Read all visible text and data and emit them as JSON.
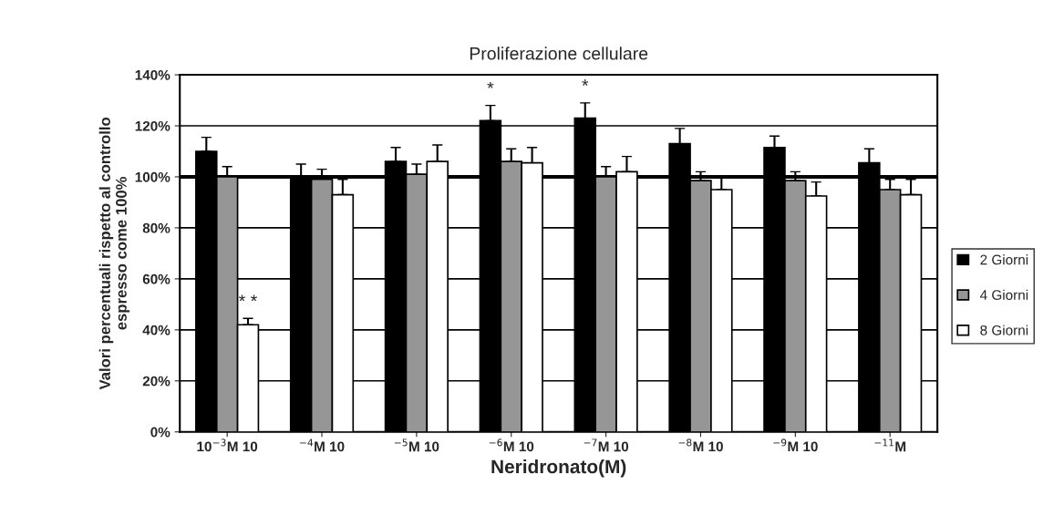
{
  "chart_data": {
    "type": "bar",
    "title": "Proliferazione cellulare",
    "xlabel": "Neridronato(M)",
    "ylabel": "Valori percentuali rispetto al controllo\nespresso come 100%",
    "categories": [
      "10$^{−3}$M 10",
      "$^{−4}$M 10",
      "$^{−5}$M 10",
      "$^{−6}$M 10",
      "$^{−7}$M 10",
      "$^{−8}$M 10",
      "$^{−9}$M 10",
      "$^{−11}$M"
    ],
    "series": [
      {
        "name": "2 Giorni",
        "color": "#000000",
        "values": [
          110,
          100,
          106,
          122,
          123,
          113,
          111.5,
          105.5
        ],
        "value_labels": [
          null,
          null,
          null,
          "*",
          "*",
          null,
          null,
          null
        ],
        "errors": [
          [
            110,
            115.5
          ],
          [
            100,
            105
          ],
          [
            106,
            111.5
          ],
          [
            122,
            128
          ],
          [
            123,
            129
          ],
          [
            113,
            119
          ],
          [
            111.5,
            116
          ],
          [
            105.5,
            111
          ]
        ]
      },
      {
        "name": "4 Giorni",
        "color": "#969696",
        "values": [
          100,
          99,
          101,
          106,
          100,
          98.5,
          98.5,
          95
        ],
        "errors": [
          [
            100,
            104
          ],
          [
            99,
            103
          ],
          [
            101,
            105
          ],
          [
            106,
            111
          ],
          [
            100,
            104
          ],
          [
            98.5,
            102
          ],
          [
            98.5,
            102
          ],
          [
            95,
            99
          ]
        ]
      },
      {
        "name": "8 Giorni",
        "color": "#ffffff",
        "values": [
          42,
          93,
          106,
          105.5,
          102,
          95,
          92.5,
          93
        ],
        "value_labels": [
          "* *",
          null,
          null,
          null,
          null,
          null,
          null,
          null
        ],
        "errors": [
          [
            42,
            44.5
          ],
          [
            93,
            99
          ],
          [
            106,
            112.5
          ],
          [
            105.5,
            111.5
          ],
          [
            102,
            108
          ],
          [
            95,
            99.5
          ],
          [
            92.5,
            98
          ],
          [
            93,
            99
          ]
        ]
      }
    ],
    "ylim": [
      0,
      140
    ],
    "yticks": [
      {
        "value": 0,
        "label": "0%"
      },
      {
        "value": 20,
        "label": "20%"
      },
      {
        "value": 40,
        "label": "40%"
      },
      {
        "value": 60,
        "label": "60%"
      },
      {
        "value": 80,
        "label": "80%"
      },
      {
        "value": 100,
        "label": "100%"
      },
      {
        "value": 120,
        "label": "120%"
      },
      {
        "value": 140,
        "label": "140%"
      }
    ],
    "ref_lines": [
      {
        "axis": "y",
        "value": 100,
        "color": "#000000"
      }
    ],
    "grid": "y",
    "legend": "right"
  }
}
